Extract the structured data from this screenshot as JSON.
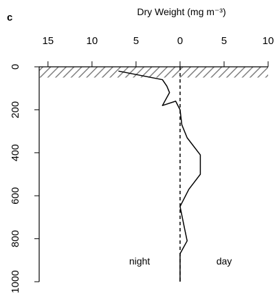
{
  "panel_label": "c",
  "chart_data": {
    "type": "line",
    "title": "Dry Weight (mg m⁻³)",
    "xlabel": "Dry Weight (mg m⁻³)",
    "ylabel": "",
    "x_axis": {
      "position": "top",
      "range": [
        -16,
        10
      ],
      "tick_values": [
        -15,
        -10,
        -5,
        0,
        5,
        10
      ],
      "tick_labels": [
        "15",
        "10",
        "5",
        "0",
        "5",
        "10"
      ]
    },
    "y_axis": {
      "range": [
        0,
        1000
      ],
      "inverted": true,
      "tick_values": [
        0,
        200,
        400,
        600,
        800,
        1000
      ],
      "tick_labels": [
        "0",
        "200",
        "400",
        "600",
        "800",
        "1000"
      ]
    },
    "hatched_band": {
      "depth_from": 0,
      "depth_to": 50
    },
    "zero_line": {
      "style": "dashed",
      "x": 0
    },
    "side_labels": {
      "left": "night",
      "right": "day"
    },
    "series": [
      {
        "points": [
          {
            "x": -7,
            "y": 20
          },
          {
            "x": -2,
            "y": 60
          },
          {
            "x": -1.5,
            "y": 90
          },
          {
            "x": -1.2,
            "y": 120
          },
          {
            "x": -2,
            "y": 180
          },
          {
            "x": -0.5,
            "y": 160
          },
          {
            "x": 0,
            "y": 200
          },
          {
            "x": 0.2,
            "y": 270
          },
          {
            "x": 0.8,
            "y": 330
          },
          {
            "x": 2.3,
            "y": 410
          },
          {
            "x": 2.3,
            "y": 500
          },
          {
            "x": 1,
            "y": 570
          },
          {
            "x": 0,
            "y": 650
          },
          {
            "x": 0.5,
            "y": 750
          },
          {
            "x": 0.8,
            "y": 810
          },
          {
            "x": 0,
            "y": 870
          },
          {
            "x": 0,
            "y": 1000
          }
        ]
      }
    ],
    "grid": false,
    "legend": "none"
  }
}
